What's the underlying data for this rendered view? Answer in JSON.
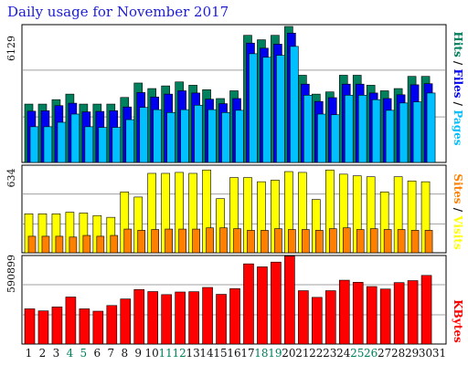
{
  "title": "Daily usage for November 2017",
  "colors": {
    "hits": "#00805c",
    "files": "#0000f0",
    "pages": "#00c0ff",
    "visits": "#ffff00",
    "sites": "#ff8000",
    "kbytes": "#ff0000",
    "weekend": "#00805c",
    "weekday": "#111111"
  },
  "chart_data": [
    {
      "type": "bar",
      "name": "hits-files-pages",
      "ylim": [
        0,
        6129
      ],
      "ytick_label": "6129",
      "grid": true,
      "series_labels": [
        "Hits",
        "/",
        "Files",
        "/",
        "Pages"
      ],
      "categories": [
        "1",
        "2",
        "3",
        "4",
        "5",
        "6",
        "7",
        "8",
        "9",
        "10",
        "11",
        "12",
        "13",
        "14",
        "15",
        "16",
        "17",
        "18",
        "19",
        "20",
        "21",
        "22",
        "23",
        "24",
        "25",
        "26",
        "27",
        "28",
        "29",
        "30",
        "31"
      ],
      "series": [
        {
          "name": "Hits",
          "values": [
            2630,
            2630,
            2830,
            3080,
            2630,
            2630,
            2630,
            2930,
            3580,
            3330,
            3450,
            3630,
            3480,
            3280,
            2880,
            3230,
            5730,
            5530,
            5730,
            6130,
            3930,
            3080,
            3180,
            3930,
            3930,
            3480,
            3230,
            3330,
            3880,
            3880,
            0
          ]
        },
        {
          "name": "Files",
          "values": [
            2310,
            2330,
            2560,
            2670,
            2280,
            2300,
            2330,
            2500,
            3150,
            2950,
            3080,
            3230,
            3130,
            2850,
            2650,
            2880,
            5380,
            5150,
            5330,
            5830,
            3530,
            2750,
            2920,
            3530,
            3530,
            3130,
            2880,
            3050,
            3500,
            3550,
            0
          ]
        },
        {
          "name": "Pages",
          "values": [
            1610,
            1610,
            1810,
            2180,
            1610,
            1580,
            1580,
            1930,
            2480,
            2380,
            2250,
            2380,
            2580,
            2380,
            2250,
            2350,
            4900,
            4740,
            4830,
            5230,
            3030,
            2180,
            2150,
            3030,
            3030,
            2830,
            2350,
            2680,
            2730,
            3130,
            0
          ]
        }
      ],
      "weekend_days": [
        "4",
        "5",
        "11",
        "12",
        "18",
        "19",
        "25",
        "26"
      ]
    },
    {
      "type": "bar",
      "name": "visits-sites",
      "ylim": [
        0,
        634
      ],
      "ytick_label": "634",
      "grid": true,
      "series_labels": [
        "Sites",
        "/",
        "Visits"
      ],
      "categories": [
        "1",
        "2",
        "3",
        "4",
        "5",
        "6",
        "7",
        "8",
        "9",
        "10",
        "11",
        "12",
        "13",
        "14",
        "15",
        "16",
        "17",
        "18",
        "19",
        "20",
        "21",
        "22",
        "23",
        "24",
        "25",
        "26",
        "27",
        "28",
        "29",
        "30",
        "31"
      ],
      "series": [
        {
          "name": "Visits",
          "values": [
            288,
            288,
            288,
            300,
            294,
            275,
            262,
            450,
            412,
            587,
            587,
            594,
            587,
            612,
            400,
            556,
            556,
            525,
            537,
            600,
            594,
            394,
            612,
            581,
            569,
            562,
            450,
            562,
            531,
            525,
            0
          ]
        },
        {
          "name": "Sites",
          "values": [
            122,
            122,
            122,
            116,
            128,
            122,
            128,
            175,
            166,
            172,
            175,
            175,
            175,
            184,
            184,
            178,
            166,
            166,
            178,
            172,
            172,
            166,
            178,
            184,
            172,
            178,
            172,
            172,
            166,
            166,
            0
          ]
        }
      ]
    },
    {
      "type": "bar",
      "name": "kbytes",
      "ylim": [
        0,
        590899
      ],
      "ytick_label": "590899",
      "grid": true,
      "series_labels": [
        "KBytes"
      ],
      "categories": [
        "1",
        "2",
        "3",
        "4",
        "5",
        "6",
        "7",
        "8",
        "9",
        "10",
        "11",
        "12",
        "13",
        "14",
        "15",
        "16",
        "17",
        "18",
        "19",
        "20",
        "21",
        "22",
        "23",
        "24",
        "25",
        "26",
        "27",
        "28",
        "29",
        "30",
        "31"
      ],
      "series": [
        {
          "name": "KBytes",
          "values": [
            239800,
            226000,
            252800,
            320400,
            239800,
            223800,
            262400,
            307200,
            371200,
            357600,
            336800,
            354600,
            356800,
            385600,
            338800,
            377600,
            546500,
            526000,
            558500,
            599600,
            363600,
            318000,
            363600,
            435000,
            420800,
            391700,
            374800,
            418700,
            432200,
            467600,
            0
          ]
        }
      ]
    }
  ]
}
